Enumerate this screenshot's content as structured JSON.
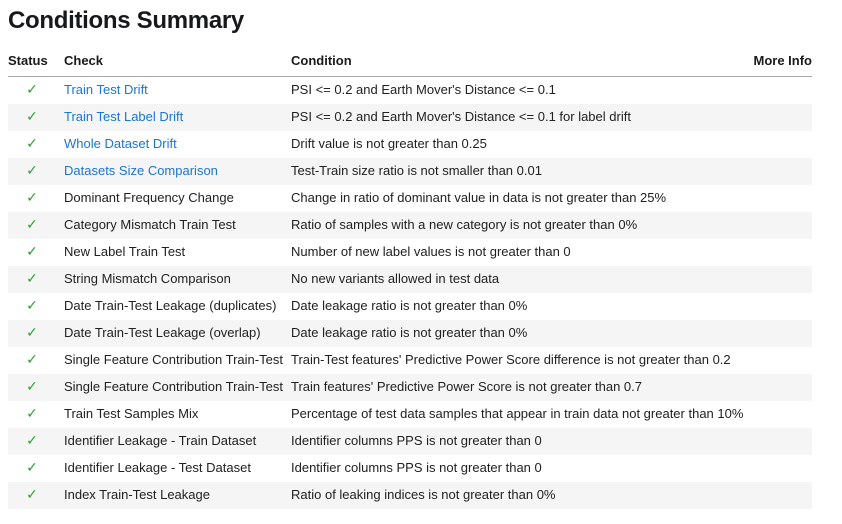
{
  "page": {
    "title": "Conditions Summary"
  },
  "colors": {
    "link_blue": "#1976d2",
    "status_pass_green": "#2aa32a",
    "row_stripe": "#f5f5f5",
    "header_border": "#a8a8a8"
  },
  "table": {
    "status_pass_icon": "✓",
    "columns": [
      {
        "key": "status",
        "label": "Status"
      },
      {
        "key": "check",
        "label": "Check"
      },
      {
        "key": "condition",
        "label": "Condition"
      },
      {
        "key": "more_info",
        "label": "More Info"
      }
    ],
    "rows": [
      {
        "status": "pass",
        "check": "Train Test Drift",
        "is_link": true,
        "condition": "PSI <= 0.2 and Earth Mover's Distance <= 0.1",
        "more_info": ""
      },
      {
        "status": "pass",
        "check": "Train Test Label Drift",
        "is_link": true,
        "condition": "PSI <= 0.2 and Earth Mover's Distance <= 0.1 for label drift",
        "more_info": ""
      },
      {
        "status": "pass",
        "check": "Whole Dataset Drift",
        "is_link": true,
        "condition": "Drift value is not greater than 0.25",
        "more_info": ""
      },
      {
        "status": "pass",
        "check": "Datasets Size Comparison",
        "is_link": true,
        "condition": "Test-Train size ratio is not smaller than 0.01",
        "more_info": ""
      },
      {
        "status": "pass",
        "check": "Dominant Frequency Change",
        "is_link": false,
        "condition": "Change in ratio of dominant value in data is not greater than 25%",
        "more_info": ""
      },
      {
        "status": "pass",
        "check": "Category Mismatch Train Test",
        "is_link": false,
        "condition": "Ratio of samples with a new category is not greater than 0%",
        "more_info": ""
      },
      {
        "status": "pass",
        "check": "New Label Train Test",
        "is_link": false,
        "condition": "Number of new label values is not greater than 0",
        "more_info": ""
      },
      {
        "status": "pass",
        "check": "String Mismatch Comparison",
        "is_link": false,
        "condition": "No new variants allowed in test data",
        "more_info": ""
      },
      {
        "status": "pass",
        "check": "Date Train-Test Leakage (duplicates)",
        "is_link": false,
        "condition": "Date leakage ratio is not greater than 0%",
        "more_info": ""
      },
      {
        "status": "pass",
        "check": "Date Train-Test Leakage (overlap)",
        "is_link": false,
        "condition": "Date leakage ratio is not greater than 0%",
        "more_info": ""
      },
      {
        "status": "pass",
        "check": "Single Feature Contribution Train-Test",
        "is_link": false,
        "condition": "Train-Test features' Predictive Power Score difference is not greater than 0.2",
        "more_info": ""
      },
      {
        "status": "pass",
        "check": "Single Feature Contribution Train-Test",
        "is_link": false,
        "condition": "Train features' Predictive Power Score is not greater than 0.7",
        "more_info": ""
      },
      {
        "status": "pass",
        "check": "Train Test Samples Mix",
        "is_link": false,
        "condition": "Percentage of test data samples that appear in train data not greater than 10%",
        "more_info": ""
      },
      {
        "status": "pass",
        "check": "Identifier Leakage - Train Dataset",
        "is_link": false,
        "condition": "Identifier columns PPS is not greater than 0",
        "more_info": ""
      },
      {
        "status": "pass",
        "check": "Identifier Leakage - Test Dataset",
        "is_link": false,
        "condition": "Identifier columns PPS is not greater than 0",
        "more_info": ""
      },
      {
        "status": "pass",
        "check": "Index Train-Test Leakage",
        "is_link": false,
        "condition": "Ratio of leaking indices is not greater than 0%",
        "more_info": ""
      }
    ]
  }
}
